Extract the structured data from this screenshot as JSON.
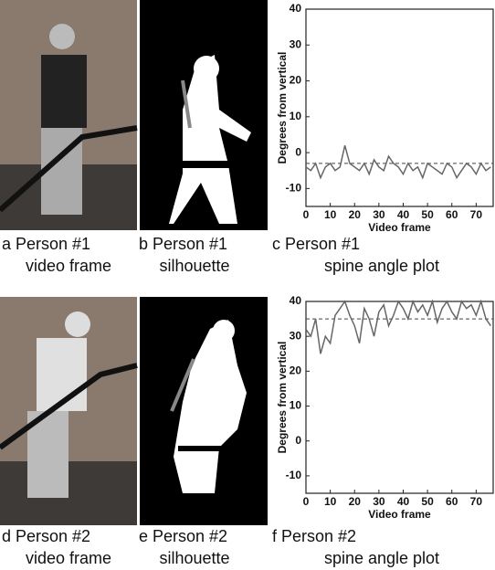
{
  "captions": [
    {
      "line1": "a Person #1",
      "line2": "video frame"
    },
    {
      "line1": "b Person #1",
      "line2": "silhouette"
    },
    {
      "line1": "c Person #1",
      "line2": "spine angle plot"
    },
    {
      "line1": "d Person #2",
      "line2": "video frame"
    },
    {
      "line1": "e Person #2",
      "line2": "silhouette"
    },
    {
      "line1": "f Person #2",
      "line2": "spine angle plot"
    }
  ],
  "chart_data": [
    {
      "type": "line",
      "xlabel": "Video frame",
      "ylabel": "Degrees from vertical",
      "x": [
        0,
        2,
        4,
        6,
        8,
        10,
        12,
        14,
        16,
        18,
        20,
        22,
        24,
        26,
        28,
        30,
        32,
        34,
        36,
        38,
        40,
        42,
        44,
        46,
        48,
        50,
        52,
        54,
        56,
        58,
        60,
        62,
        64,
        66,
        68,
        70,
        72,
        74,
        76
      ],
      "values": [
        -4,
        -5,
        -3,
        -7,
        -4,
        -3,
        -5,
        -4,
        2,
        -3,
        -4,
        -5,
        -3,
        -6,
        -2,
        -4,
        -5,
        -1,
        -3,
        -4,
        -6,
        -3,
        -5,
        -4,
        -7,
        -3,
        -4,
        -5,
        -6,
        -3,
        -4,
        -7,
        -5,
        -3,
        -4,
        -6,
        -3,
        -5,
        -4
      ],
      "color": "#666666",
      "reference": -3,
      "xlim": [
        0,
        77
      ],
      "xticks": [
        0,
        10,
        20,
        30,
        40,
        50,
        60,
        70
      ],
      "ylim": [
        -15,
        40
      ],
      "yticks": [
        -10,
        0,
        10,
        20,
        30,
        40
      ]
    },
    {
      "type": "line",
      "xlabel": "Video frame",
      "ylabel": "Degrees from vertical",
      "x": [
        0,
        2,
        4,
        6,
        8,
        10,
        12,
        14,
        16,
        18,
        20,
        22,
        24,
        26,
        28,
        30,
        32,
        34,
        36,
        38,
        40,
        42,
        44,
        46,
        48,
        50,
        52,
        54,
        56,
        58,
        60,
        62,
        64,
        66,
        68,
        70,
        72,
        74,
        76
      ],
      "values": [
        32,
        30,
        35,
        25,
        30,
        28,
        36,
        38,
        40,
        36,
        33,
        28,
        38,
        35,
        30,
        37,
        39,
        33,
        36,
        40,
        38,
        35,
        40,
        37,
        39,
        36,
        40,
        34,
        38,
        40,
        37,
        35,
        40,
        38,
        39,
        36,
        40,
        35,
        33
      ],
      "color": "#666666",
      "reference": 35,
      "xlim": [
        0,
        77
      ],
      "xticks": [
        0,
        10,
        20,
        30,
        40,
        50,
        60,
        70
      ],
      "ylim": [
        -15,
        40
      ],
      "yticks": [
        -10,
        0,
        10,
        20,
        30,
        40
      ]
    }
  ]
}
